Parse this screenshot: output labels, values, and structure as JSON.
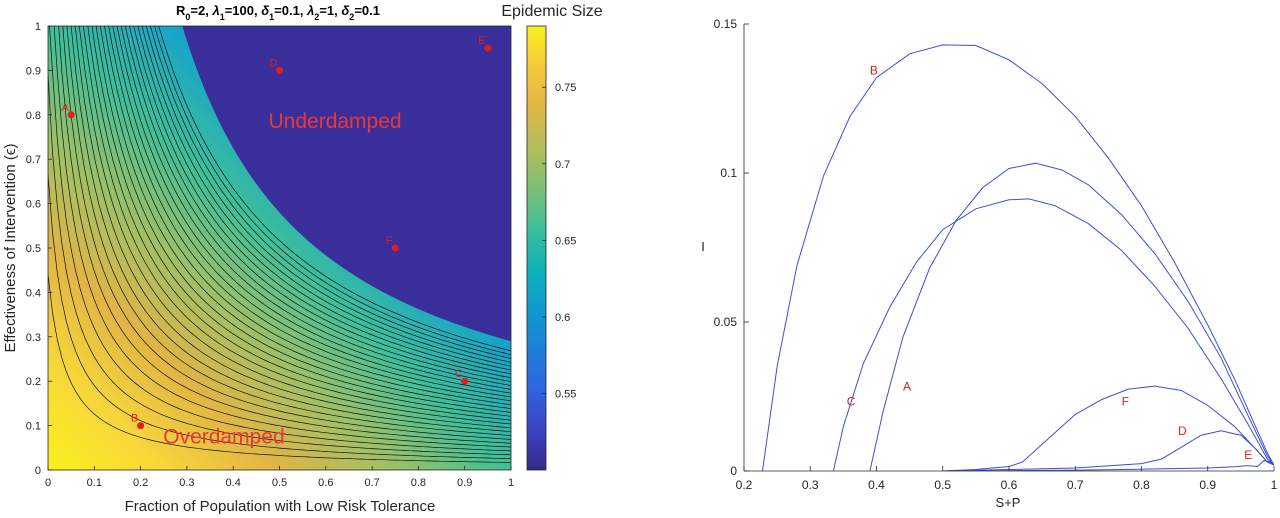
{
  "chart_data": [
    {
      "type": "heatmap",
      "title_parts": [
        "R",
        "0",
        "=2, ",
        "λ",
        "1",
        "=100, ",
        "δ",
        "1",
        "=0.1, ",
        "λ",
        "2",
        "=1, ",
        "δ",
        "2",
        "=0.1"
      ],
      "xlabel": "Fraction of Population with Low Risk Tolerance",
      "ylabel": "Effectiveness of Intervention (ϵ)",
      "xlim": [
        0,
        1
      ],
      "ylim": [
        0,
        1
      ],
      "xticks": [
        "0",
        "0.1",
        "0.2",
        "0.3",
        "0.4",
        "0.5",
        "0.6",
        "0.7",
        "0.8",
        "0.9",
        "1"
      ],
      "yticks": [
        "0",
        "0.1",
        "0.2",
        "0.3",
        "0.4",
        "0.5",
        "0.6",
        "0.7",
        "0.8",
        "0.9",
        "1"
      ],
      "colorbar": {
        "label": "Epidemic Size",
        "range": [
          0.5,
          0.79
        ],
        "ticks": [
          "0.55",
          "0.6",
          "0.65",
          "0.7",
          "0.75"
        ],
        "colormap": "parula"
      },
      "region_labels": [
        {
          "text": "Underdamped",
          "x": 0.62,
          "y": 0.77
        },
        {
          "text": "Overdamped",
          "x": 0.38,
          "y": 0.06
        }
      ],
      "region_label_color": "#e8383a",
      "points": [
        {
          "label": "A",
          "x": 0.05,
          "y": 0.8
        },
        {
          "label": "B",
          "x": 0.2,
          "y": 0.1
        },
        {
          "label": "C",
          "x": 0.9,
          "y": 0.2
        },
        {
          "label": "D",
          "x": 0.5,
          "y": 0.9
        },
        {
          "label": "E",
          "x": 0.95,
          "y": 0.95
        },
        {
          "label": "F",
          "x": 0.75,
          "y": 0.5
        }
      ],
      "point_color": "#e01e1e"
    },
    {
      "type": "line",
      "xlabel": "S+P",
      "ylabel": "I",
      "xlim": [
        0.2,
        1
      ],
      "ylim": [
        0,
        0.15
      ],
      "xticks": [
        "0.2",
        "0.3",
        "0.4",
        "0.5",
        "0.6",
        "0.7",
        "0.8",
        "0.9",
        "1"
      ],
      "yticks": [
        "0",
        "0.05",
        "0.1",
        "0.15"
      ],
      "line_color": "#3b4fd8",
      "label_color": "#e01e1e",
      "series": [
        {
          "name": "B",
          "label_at": [
            0.39,
            0.133
          ],
          "points": [
            [
              0.228,
              0
            ],
            [
              0.25,
              0.035
            ],
            [
              0.28,
              0.069
            ],
            [
              0.32,
              0.099
            ],
            [
              0.36,
              0.119
            ],
            [
              0.4,
              0.132
            ],
            [
              0.45,
              0.14
            ],
            [
              0.5,
              0.143
            ],
            [
              0.55,
              0.1428
            ],
            [
              0.6,
              0.138
            ],
            [
              0.65,
              0.13
            ],
            [
              0.7,
              0.119
            ],
            [
              0.75,
              0.105
            ],
            [
              0.8,
              0.089
            ],
            [
              0.85,
              0.07
            ],
            [
              0.9,
              0.049
            ],
            [
              0.94,
              0.031
            ],
            [
              0.97,
              0.016
            ],
            [
              0.99,
              0.006
            ],
            [
              1.0,
              0.002
            ]
          ]
        },
        {
          "name": "A",
          "label_at": [
            0.44,
            0.027
          ],
          "points": [
            [
              0.39,
              0
            ],
            [
              0.41,
              0.02
            ],
            [
              0.44,
              0.045
            ],
            [
              0.48,
              0.068
            ],
            [
              0.52,
              0.084
            ],
            [
              0.56,
              0.095
            ],
            [
              0.6,
              0.1015
            ],
            [
              0.64,
              0.1033
            ],
            [
              0.68,
              0.101
            ],
            [
              0.72,
              0.096
            ],
            [
              0.77,
              0.086
            ],
            [
              0.82,
              0.073
            ],
            [
              0.87,
              0.057
            ],
            [
              0.92,
              0.038
            ],
            [
              0.96,
              0.019
            ],
            [
              0.99,
              0.005
            ],
            [
              1.0,
              0.002
            ]
          ]
        },
        {
          "name": "C",
          "label_at": [
            0.355,
            0.022
          ],
          "points": [
            [
              0.335,
              0
            ],
            [
              0.35,
              0.015
            ],
            [
              0.38,
              0.036
            ],
            [
              0.42,
              0.055
            ],
            [
              0.46,
              0.07
            ],
            [
              0.5,
              0.081
            ],
            [
              0.55,
              0.088
            ],
            [
              0.6,
              0.091
            ],
            [
              0.63,
              0.0913
            ],
            [
              0.67,
              0.089
            ],
            [
              0.72,
              0.083
            ],
            [
              0.77,
              0.074
            ],
            [
              0.82,
              0.062
            ],
            [
              0.87,
              0.048
            ],
            [
              0.92,
              0.031
            ],
            [
              0.96,
              0.016
            ],
            [
              0.99,
              0.004
            ],
            [
              1.0,
              0.002
            ]
          ]
        },
        {
          "name": "F",
          "label_at": [
            0.77,
            0.022
          ],
          "points": [
            [
              0.5,
              0
            ],
            [
              0.55,
              0.0005
            ],
            [
              0.6,
              0.0015
            ],
            [
              0.62,
              0.003
            ],
            [
              0.66,
              0.011
            ],
            [
              0.7,
              0.019
            ],
            [
              0.74,
              0.024
            ],
            [
              0.78,
              0.0275
            ],
            [
              0.82,
              0.0285
            ],
            [
              0.86,
              0.027
            ],
            [
              0.9,
              0.022
            ],
            [
              0.94,
              0.015
            ],
            [
              0.97,
              0.008
            ],
            [
              0.99,
              0.003
            ],
            [
              1.0,
              0.002
            ]
          ]
        },
        {
          "name": "D",
          "label_at": [
            0.855,
            0.012
          ],
          "points": [
            [
              0.5,
              0
            ],
            [
              0.6,
              0.0005
            ],
            [
              0.7,
              0.001
            ],
            [
              0.8,
              0.0025
            ],
            [
              0.83,
              0.004
            ],
            [
              0.86,
              0.008
            ],
            [
              0.89,
              0.012
            ],
            [
              0.92,
              0.0135
            ],
            [
              0.95,
              0.012
            ],
            [
              0.97,
              0.008
            ],
            [
              0.99,
              0.003
            ],
            [
              1.0,
              0.002
            ]
          ]
        },
        {
          "name": "E",
          "label_at": [
            0.955,
            0.004
          ],
          "points": [
            [
              0.55,
              0
            ],
            [
              0.7,
              0.0003
            ],
            [
              0.8,
              0.0006
            ],
            [
              0.9,
              0.001
            ],
            [
              0.94,
              0.0014
            ],
            [
              0.96,
              0.0018
            ],
            [
              0.975,
              0.0015
            ],
            [
              0.985,
              0.0035
            ],
            [
              0.995,
              0.003
            ],
            [
              1.0,
              0.002
            ]
          ]
        }
      ]
    }
  ]
}
